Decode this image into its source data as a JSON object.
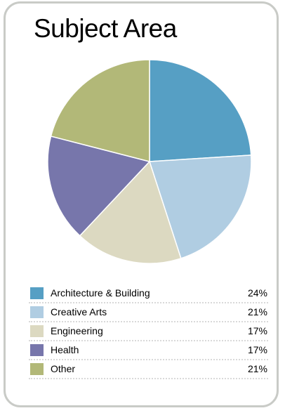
{
  "chart_data": {
    "type": "pie",
    "title": "Subject Area",
    "categories": [
      "Architecture & Building",
      "Creative Arts",
      "Engineering",
      "Health",
      "Other"
    ],
    "values": [
      24,
      21,
      17,
      17,
      21
    ],
    "labels": [
      "24%",
      "21%",
      "17%",
      "17%",
      "21%"
    ],
    "colors": [
      "#569fc4",
      "#b0cde2",
      "#dcd9c1",
      "#7776ab",
      "#b2b878"
    ],
    "legend": "bottom"
  }
}
